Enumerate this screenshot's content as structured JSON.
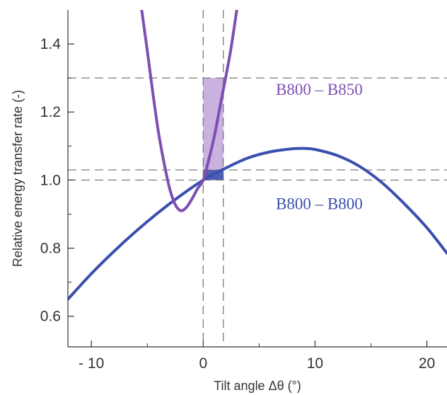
{
  "chart_data": {
    "type": "line",
    "xlabel": "Tilt angle Δθ (°)",
    "ylabel": "Relative energy transfer rate (-)",
    "xlim": [
      -12.1,
      21.8
    ],
    "ylim": [
      0.51,
      1.5
    ],
    "x_ticks": [
      -10,
      0,
      10,
      20
    ],
    "x_tick_labels": [
      "- 10",
      "0",
      "10",
      "20"
    ],
    "y_ticks": [
      0.6,
      0.8,
      1.0,
      1.2,
      1.4
    ],
    "y_tick_labels": [
      "0.6",
      "0.8",
      "1.0",
      "1.2",
      "1.4"
    ],
    "grid": false,
    "series": [
      {
        "name": "B800 – B800",
        "color": "#3a4fae",
        "points": [
          [
            -12.1,
            0.65
          ],
          [
            -10,
            0.725
          ],
          [
            -8,
            0.79
          ],
          [
            -6,
            0.85
          ],
          [
            -4,
            0.905
          ],
          [
            -2,
            0.955
          ],
          [
            0,
            1.0
          ],
          [
            2,
            1.035
          ],
          [
            4,
            1.065
          ],
          [
            6,
            1.083
          ],
          [
            8,
            1.092
          ],
          [
            9,
            1.093
          ],
          [
            10,
            1.09
          ],
          [
            12,
            1.072
          ],
          [
            14,
            1.04
          ],
          [
            16,
            0.992
          ],
          [
            18,
            0.93
          ],
          [
            20,
            0.86
          ],
          [
            21.8,
            0.785
          ]
        ]
      },
      {
        "name": "B800 – B850",
        "color": "#7e4fb3",
        "points": [
          [
            -5.5,
            1.5
          ],
          [
            -5,
            1.38
          ],
          [
            -4.5,
            1.255
          ],
          [
            -4,
            1.14
          ],
          [
            -3.5,
            1.05
          ],
          [
            -3,
            0.975
          ],
          [
            -2.5,
            0.928
          ],
          [
            -2,
            0.91
          ],
          [
            -1.5,
            0.92
          ],
          [
            -1,
            0.945
          ],
          [
            -0.5,
            0.975
          ],
          [
            0,
            1.0
          ],
          [
            0.5,
            1.06
          ],
          [
            1,
            1.13
          ],
          [
            1.5,
            1.215
          ],
          [
            2,
            1.3
          ],
          [
            2.5,
            1.39
          ],
          [
            3,
            1.5
          ]
        ]
      }
    ],
    "reference_lines": {
      "horizontal": [
        1.0,
        1.03,
        1.3
      ],
      "vertical": [
        0,
        1.8
      ]
    },
    "shaded_regions": [
      {
        "series": "B800 – B850",
        "x": [
          0,
          1.8
        ],
        "y": [
          1.0,
          1.3
        ],
        "color": "#c9b2e0"
      },
      {
        "series": "B800 – B800",
        "x": [
          0,
          1.8
        ],
        "y": [
          1.0,
          1.03
        ],
        "color": "#4d5fb5"
      }
    ],
    "annotations": [
      {
        "text": "B800 – B850",
        "x": 6.5,
        "y": 1.25,
        "color": "#7e4fb3"
      },
      {
        "text": "B800 – B800",
        "x": 6.5,
        "y": 0.915,
        "color": "#3a4fae"
      }
    ]
  }
}
